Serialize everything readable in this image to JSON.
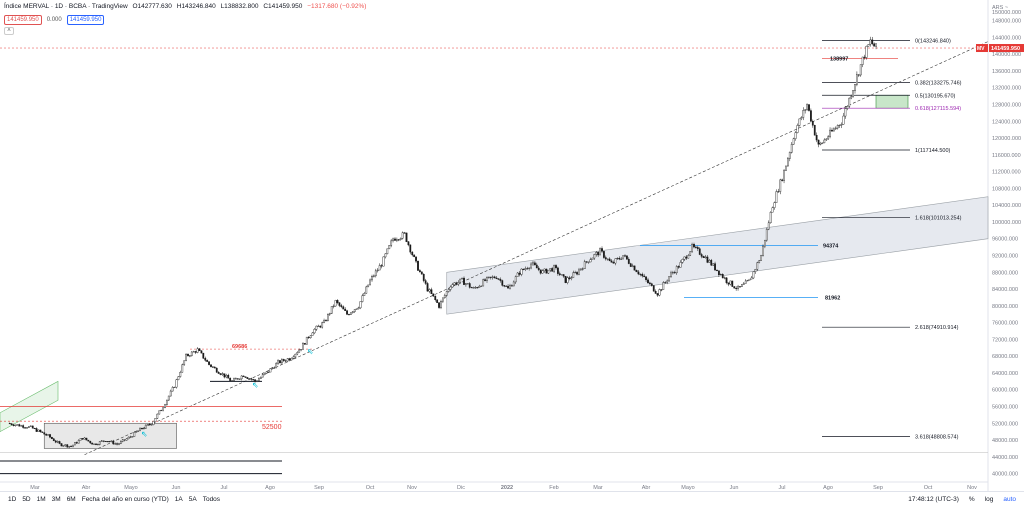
{
  "header": {
    "title": "Índice MERVAL · 1D · BCBA · TradingView",
    "open": "O142777.630",
    "high": "H143246.840",
    "low": "L138832.800",
    "close": "C141459.950",
    "change": "−1317.680 (−0.92%)",
    "sell_price": "141459.950",
    "spread": "0.000",
    "buy_price": "141459.950",
    "collapse_glyph": "˄"
  },
  "currency": "ARS ~",
  "price_badge": {
    "symbol": "MV",
    "value": "141459.950",
    "color": "#e53935"
  },
  "colors": {
    "up": "#26a69a",
    "down": "#ef5350",
    "candle": "#1a1a1a",
    "fib": "#131722",
    "fib_highlight": "#9c27b0",
    "channel": "#e6e9ef",
    "hline_red": "#e53935",
    "hline_blue": "#2196f3",
    "green_box": "#c8e6c9"
  },
  "chart_data": {
    "type": "candlestick",
    "title": "Índice MERVAL · 1D · BCBA",
    "y_axis": {
      "ticks": [
        "150000.000",
        "148000.000",
        "144000.000",
        "140000.000",
        "136000.000",
        "132000.000",
        "128000.000",
        "124000.000",
        "120000.000",
        "116000.000",
        "112000.000",
        "108000.000",
        "104000.000",
        "100000.000",
        "96000.000",
        "92000.000",
        "88000.000",
        "84000.000",
        "80000.000",
        "76000.000",
        "72000.000",
        "68000.000",
        "64000.000",
        "60000.000",
        "56000.000",
        "52000.000",
        "48000.000",
        "44000.000",
        "40000.000"
      ],
      "range": [
        38000,
        151000
      ]
    },
    "x_axis": {
      "ticks": [
        "Mar",
        "Abr",
        "Mayo",
        "Jun",
        "Jul",
        "Ago",
        "Sep",
        "Oct",
        "Nov",
        "Dic",
        "2022",
        "Feb",
        "Mar",
        "Abr",
        "Mayo",
        "Jun",
        "Jul",
        "Ago",
        "Sep",
        "Oct",
        "Nov"
      ]
    },
    "price_path": [
      [
        1,
        52000
      ],
      [
        5,
        51000
      ],
      [
        8,
        49000
      ],
      [
        10,
        47000
      ],
      [
        12,
        46500
      ],
      [
        14,
        48500
      ],
      [
        16,
        47000
      ],
      [
        18,
        48000
      ],
      [
        20,
        47000
      ],
      [
        22,
        48500
      ],
      [
        24,
        50500
      ],
      [
        26,
        52000
      ],
      [
        28,
        56000
      ],
      [
        30,
        61000
      ],
      [
        32,
        68000
      ],
      [
        34,
        69500
      ],
      [
        36,
        66000
      ],
      [
        38,
        64000
      ],
      [
        40,
        62000
      ],
      [
        42,
        63500
      ],
      [
        44,
        62000
      ],
      [
        46,
        64000
      ],
      [
        48,
        66500
      ],
      [
        50,
        67500
      ],
      [
        52,
        70000
      ],
      [
        54,
        74000
      ],
      [
        56,
        76000
      ],
      [
        58,
        81000
      ],
      [
        60,
        78000
      ],
      [
        62,
        80000
      ],
      [
        64,
        86000
      ],
      [
        66,
        90000
      ],
      [
        68,
        96000
      ],
      [
        70,
        97000
      ],
      [
        72,
        90000
      ],
      [
        74,
        84000
      ],
      [
        76,
        80000
      ],
      [
        78,
        85000
      ],
      [
        80,
        86000
      ],
      [
        82,
        84000
      ],
      [
        84,
        86000
      ],
      [
        86,
        87000
      ],
      [
        88,
        84000
      ],
      [
        90,
        88000
      ],
      [
        92,
        90000
      ],
      [
        94,
        88000
      ],
      [
        96,
        89000
      ],
      [
        98,
        86000
      ],
      [
        100,
        88000
      ],
      [
        102,
        91000
      ],
      [
        104,
        93000
      ],
      [
        106,
        90000
      ],
      [
        108,
        92000
      ],
      [
        110,
        89000
      ],
      [
        112,
        86000
      ],
      [
        114,
        83000
      ],
      [
        116,
        87000
      ],
      [
        118,
        90000
      ],
      [
        120,
        94000
      ],
      [
        122,
        92000
      ],
      [
        124,
        89000
      ],
      [
        126,
        86000
      ],
      [
        128,
        84000
      ],
      [
        130,
        86000
      ],
      [
        132,
        92000
      ],
      [
        134,
        104000
      ],
      [
        136,
        112000
      ],
      [
        138,
        122000
      ],
      [
        140,
        128000
      ],
      [
        142,
        118000
      ],
      [
        144,
        121000
      ],
      [
        146,
        124000
      ],
      [
        148,
        132000
      ],
      [
        150,
        140000
      ],
      [
        151,
        143000
      ],
      [
        152,
        141460
      ]
    ],
    "levels": [
      {
        "label": "0(143246.840)",
        "price": 143246.84
      },
      {
        "label": "0.382(133275.746)",
        "price": 133275.746
      },
      {
        "label": "0.5(130195.670)",
        "price": 130195.67
      },
      {
        "label": "0.618(127115.594)",
        "price": 127115.594,
        "highlight": true
      },
      {
        "label": "1(117144.500)",
        "price": 117144.5
      },
      {
        "label": "1.618(101013.254)",
        "price": 101013.254
      },
      {
        "label": "2.618(74910.914)",
        "price": 74910.914
      },
      {
        "label": "3.618(48808.574)",
        "price": 48808.574
      }
    ],
    "annotations": [
      {
        "text": "138997",
        "price": 138997
      },
      {
        "text": "94374",
        "price": 94374
      },
      {
        "text": "81962",
        "price": 81962
      },
      {
        "text": "69686",
        "price": 69686
      },
      {
        "text": "52500",
        "price": 52500
      }
    ],
    "grid": false,
    "legend": "none"
  },
  "bottom_bar": {
    "timeframes": [
      "1D",
      "5D",
      "1M",
      "3M",
      "6M",
      "Fecha del año en curso (YTD)",
      "1A",
      "5A",
      "Todos"
    ],
    "clock": "17:48:12 (UTC-3)",
    "percent": "%",
    "log": "log",
    "auto": "auto"
  }
}
